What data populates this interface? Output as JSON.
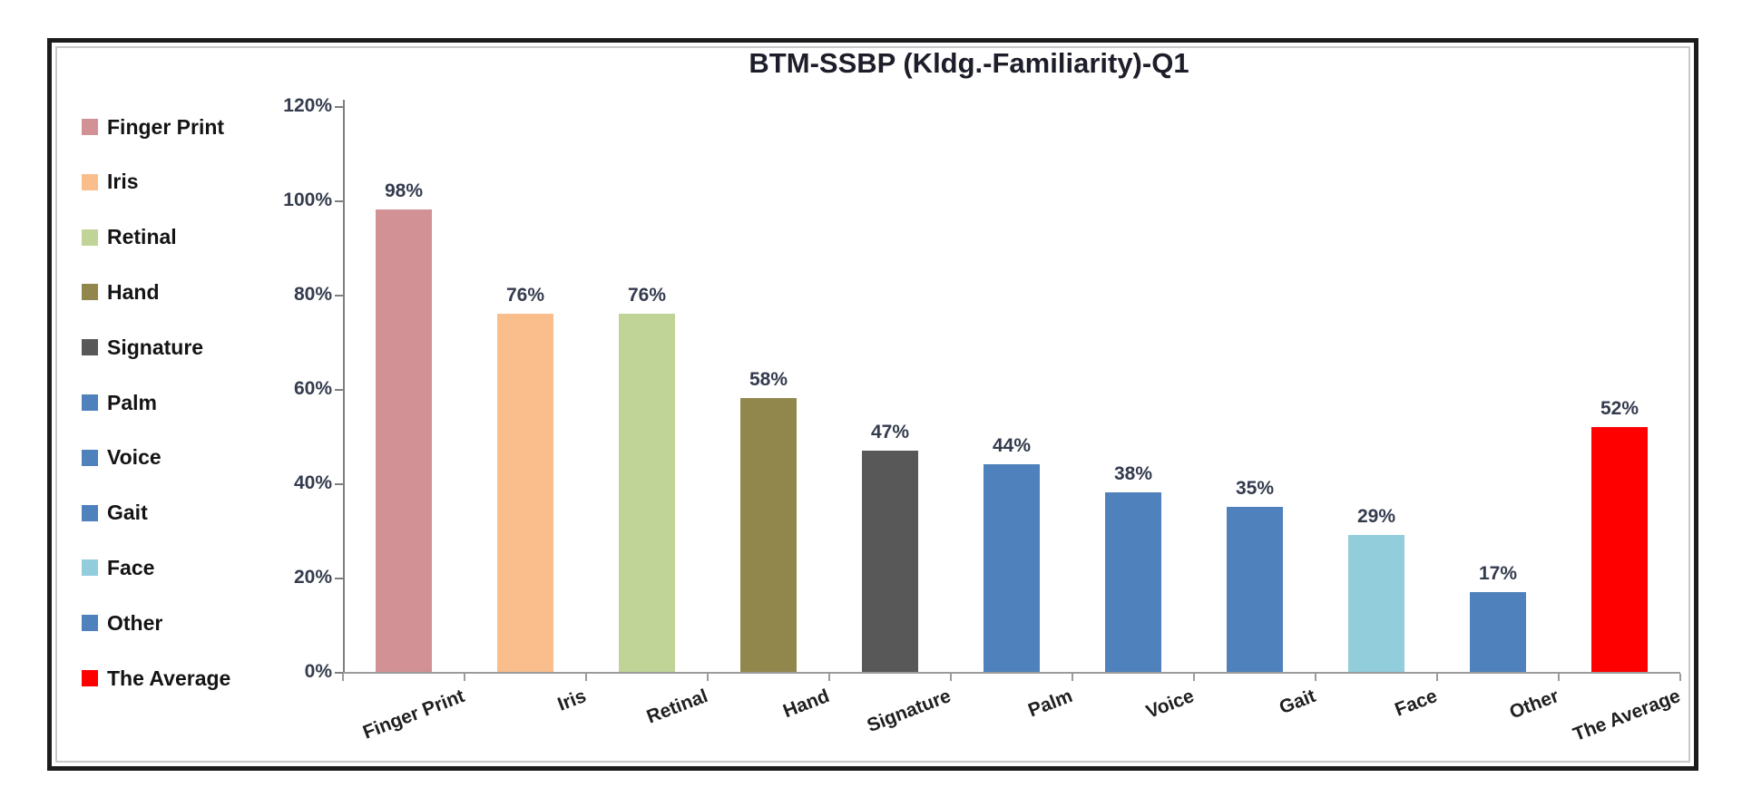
{
  "chart_data": {
    "type": "bar",
    "title": "BTM-SSBP (Kldg.-Familiarity)-Q1",
    "categories": [
      "Finger Print",
      "Iris",
      "Retinal",
      "Hand",
      "Signature",
      "Palm",
      "Voice",
      "Gait",
      "Face",
      "Other",
      "The Average"
    ],
    "values": [
      98,
      76,
      76,
      58,
      47,
      44,
      38,
      35,
      29,
      17,
      52
    ],
    "value_labels": [
      "98%",
      "76%",
      "76%",
      "58%",
      "47%",
      "44%",
      "38%",
      "35%",
      "29%",
      "17%",
      "52%"
    ],
    "bar_colors": [
      "#D29195",
      "#FABE8C",
      "#C0D498",
      "#91874D",
      "#585858",
      "#4F81BD",
      "#4F81BD",
      "#4F81BD",
      "#92CDDC",
      "#4F81BD",
      "#FF0000"
    ],
    "legend": [
      {
        "label": "Finger Print",
        "color": "#D29195"
      },
      {
        "label": "Iris",
        "color": "#FABE8C"
      },
      {
        "label": "Retinal",
        "color": "#C0D498"
      },
      {
        "label": "Hand",
        "color": "#91874D"
      },
      {
        "label": "Signature",
        "color": "#585858"
      },
      {
        "label": "Palm",
        "color": "#4F81BD"
      },
      {
        "label": "Voice",
        "color": "#4F81BD"
      },
      {
        "label": "Gait",
        "color": "#4F81BD"
      },
      {
        "label": "Face",
        "color": "#92CDDC"
      },
      {
        "label": "Other",
        "color": "#4F81BD"
      },
      {
        "label": "The Average",
        "color": "#FF0000"
      }
    ],
    "legend_position": "left",
    "y_ticks": [
      {
        "label": "0%",
        "value": 0
      },
      {
        "label": "20%",
        "value": 20
      },
      {
        "label": "40%",
        "value": 40
      },
      {
        "label": "60%",
        "value": 60
      },
      {
        "label": "80%",
        "value": 80
      },
      {
        "label": "100%",
        "value": 100
      },
      {
        "label": "120%",
        "value": 120
      }
    ],
    "ylim": [
      0,
      120
    ],
    "xlabel": "",
    "ylabel": "",
    "grid": false
  }
}
